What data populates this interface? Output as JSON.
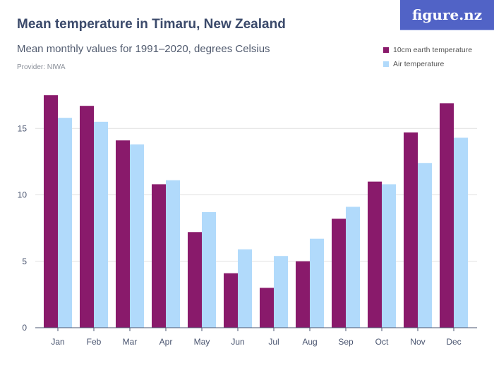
{
  "header": {
    "title": "Mean temperature in Timaru, New Zealand",
    "subtitle": "Mean monthly values for 1991–2020, degrees Celsius",
    "provider": "Provider: NIWA",
    "logo": "figure.nz"
  },
  "chart_data": {
    "type": "bar",
    "categories": [
      "Jan",
      "Feb",
      "Mar",
      "Apr",
      "May",
      "Jun",
      "Jul",
      "Aug",
      "Sep",
      "Oct",
      "Nov",
      "Dec"
    ],
    "series": [
      {
        "name": "10cm earth temperature",
        "color": "#891a6b",
        "values": [
          17.5,
          16.7,
          14.1,
          10.8,
          7.2,
          4.1,
          3.0,
          5.0,
          8.2,
          11.0,
          14.7,
          16.9
        ]
      },
      {
        "name": "Air temperature",
        "color": "#b1dafb",
        "values": [
          15.8,
          15.5,
          13.8,
          11.1,
          8.7,
          5.9,
          5.4,
          6.7,
          9.1,
          10.8,
          12.4,
          14.3
        ]
      }
    ],
    "yticks": [
      0,
      5,
      10,
      15
    ],
    "ylim": [
      0,
      18
    ],
    "grid": true,
    "legend": "top-right"
  }
}
